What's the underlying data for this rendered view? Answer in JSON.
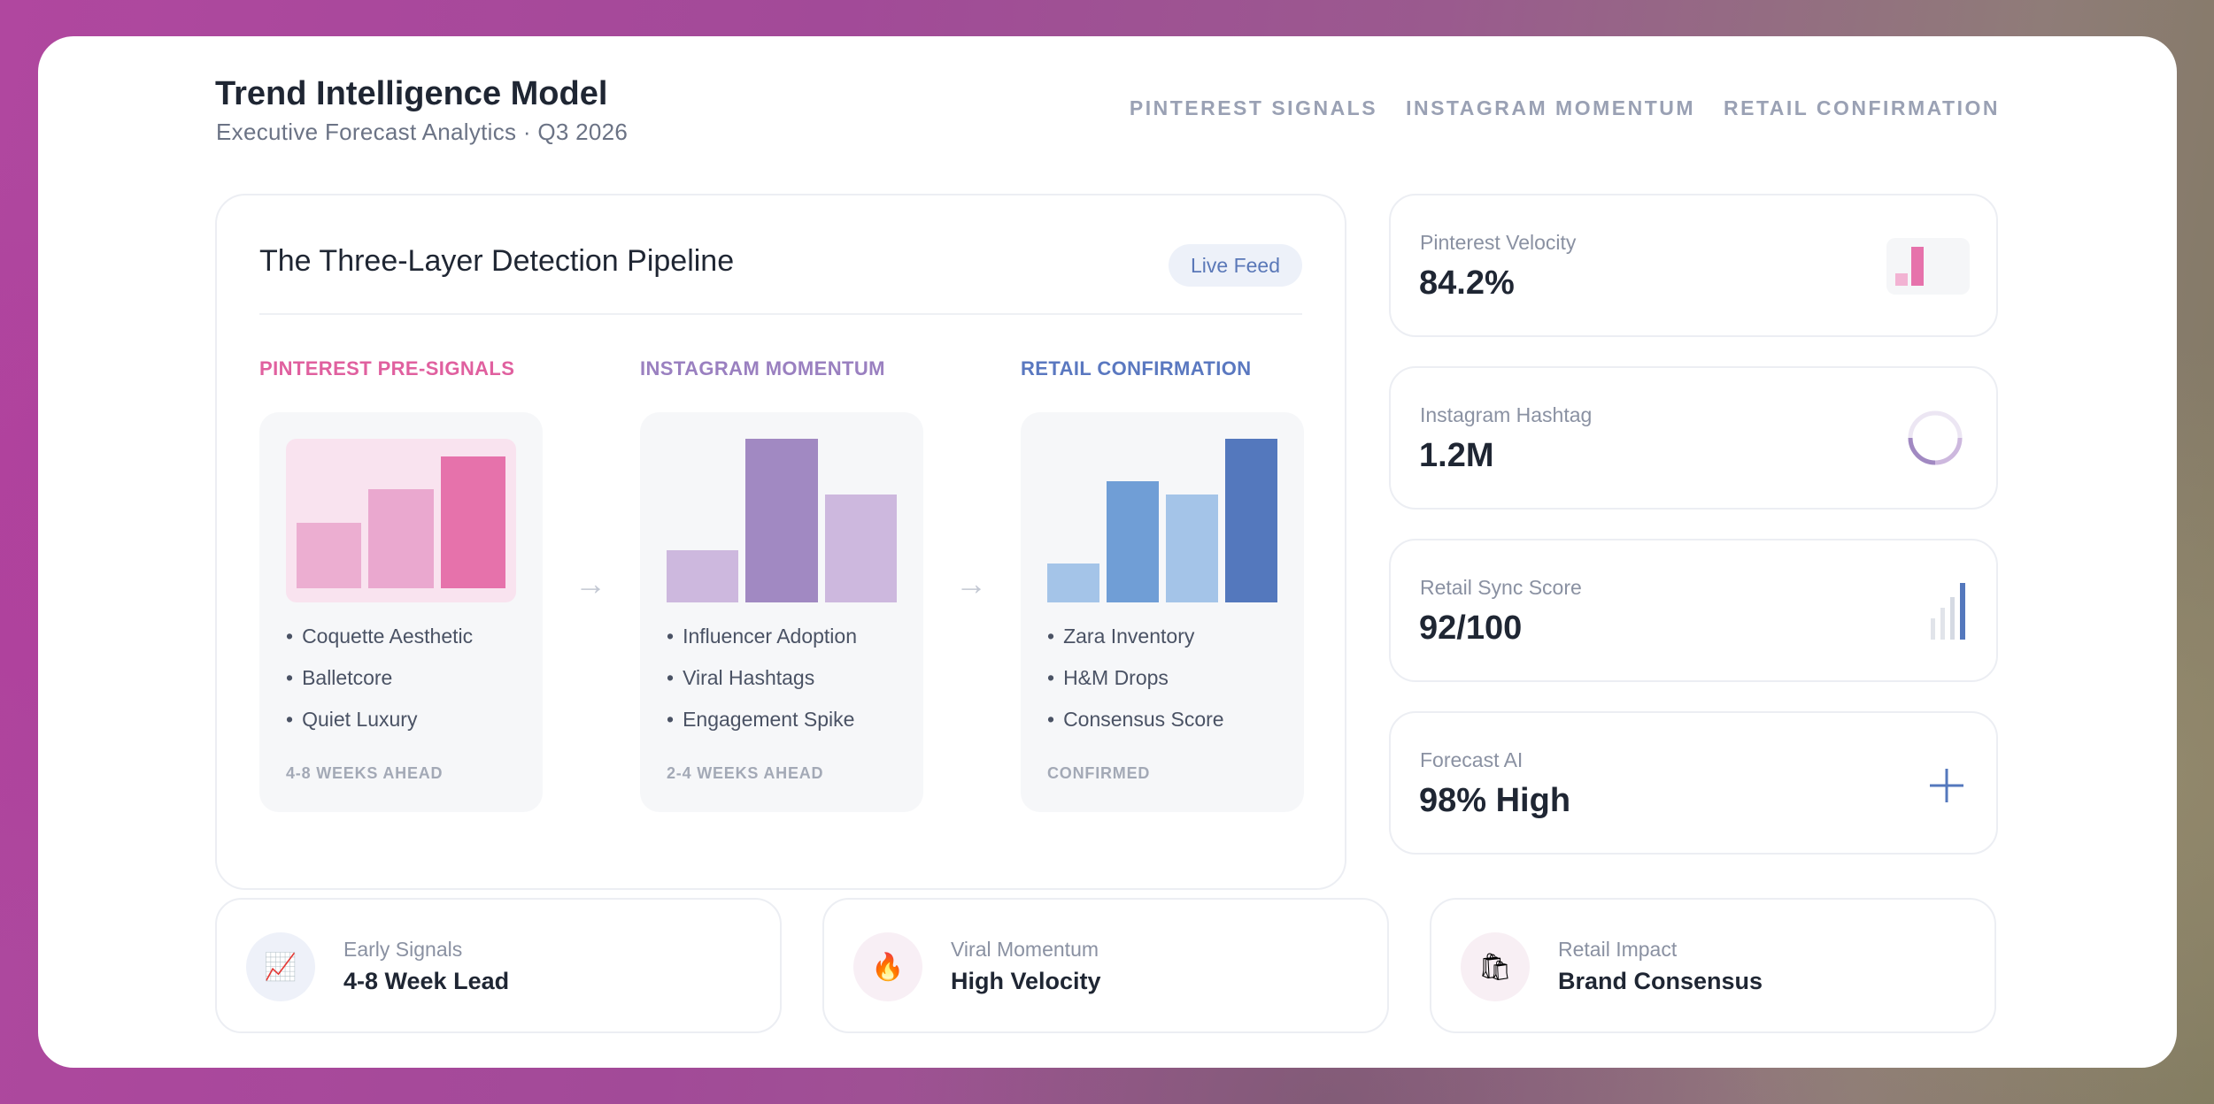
{
  "header": {
    "title": "Trend Intelligence Model",
    "subtitle": "Executive Forecast Analytics · Q3 2026",
    "nav": [
      "PINTEREST SIGNALS",
      "INSTAGRAM MOMENTUM",
      "RETAIL CONFIRMATION"
    ]
  },
  "pipeline": {
    "title": "The Three-Layer Detection Pipeline",
    "badge": "Live Feed",
    "columns": [
      {
        "label": "PINTEREST PRE-SIGNALS",
        "items": [
          "Coquette Aesthetic",
          "Balletcore",
          "Quiet Luxury"
        ],
        "footer": "4-8 WEEKS AHEAD",
        "bar_levels": [
          0.5,
          0.75,
          1.0
        ],
        "colors": [
          "#ecaed1",
          "#eaa8cf",
          "#e672ab"
        ],
        "label_color": "#e0609f"
      },
      {
        "label": "INSTAGRAM MOMENTUM",
        "items": [
          "Influencer Adoption",
          "Viral Hashtags",
          "Engagement Spike"
        ],
        "footer": "2-4 WEEKS AHEAD",
        "bar_levels": [
          0.32,
          1.0,
          0.66
        ],
        "colors": [
          "#cdb8de",
          "#a189c2",
          "#cdb8de"
        ],
        "label_color": "#9a80c0"
      },
      {
        "label": "RETAIL CONFIRMATION",
        "items": [
          "Zara Inventory",
          "H&M Drops",
          "Consensus Score"
        ],
        "footer": "CONFIRMED",
        "bar_levels": [
          0.24,
          0.74,
          0.66,
          1.0
        ],
        "colors": [
          "#a4c4e8",
          "#709ed6",
          "#a4c4e8",
          "#5478bd"
        ],
        "label_color": "#5a78c0"
      }
    ]
  },
  "stats": [
    {
      "label": "Pinterest Velocity",
      "value": "84.2%",
      "icon": "mini-bar-icon"
    },
    {
      "label": "Instagram Hashtag",
      "value": "1.2M",
      "icon": "ring-progress-icon"
    },
    {
      "label": "Retail Sync Score",
      "value": "92/100",
      "icon": "signal-bars-icon"
    },
    {
      "label": "Forecast AI",
      "value": "98% High",
      "icon": "plus-icon"
    }
  ],
  "bottom": [
    {
      "label": "Early Signals",
      "value": "4-8 Week Lead",
      "icon": "chart-trend-icon",
      "glyph": "📈"
    },
    {
      "label": "Viral Momentum",
      "value": "High Velocity",
      "icon": "fire-icon",
      "glyph": "🔥"
    },
    {
      "label": "Retail Impact",
      "value": "Brand Consensus",
      "icon": "shopping-bag-icon",
      "glyph": "🛍"
    }
  ],
  "colors": {
    "accent_pink": "#e0609f",
    "accent_purple": "#9a80c0",
    "accent_blue": "#5a78c0"
  }
}
